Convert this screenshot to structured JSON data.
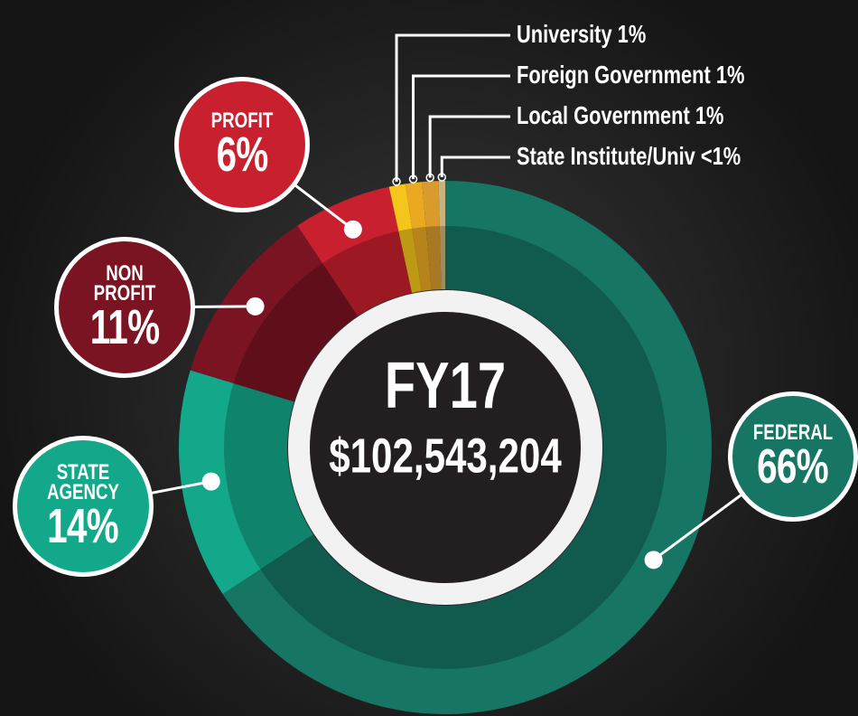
{
  "chart_data": {
    "type": "donut",
    "title": "FY17",
    "subtitle": "$102,543,204",
    "categories": [
      "FEDERAL",
      "STATE AGENCY",
      "NON PROFIT",
      "PROFIT",
      "University",
      "Foreign Government",
      "Local Government",
      "State Institute/Univ"
    ],
    "values": [
      66,
      14,
      11,
      6,
      1,
      1,
      1,
      0.4
    ],
    "value_labels": [
      "66%",
      "14%",
      "11%",
      "6%",
      "1%",
      "1%",
      "1%",
      "<1%"
    ],
    "colors": [
      "#177564",
      "#14a88a",
      "#7b1422",
      "#c8202e",
      "#f4c51a",
      "#e9aa22",
      "#d89b2c",
      "#c9b27e"
    ]
  }
}
